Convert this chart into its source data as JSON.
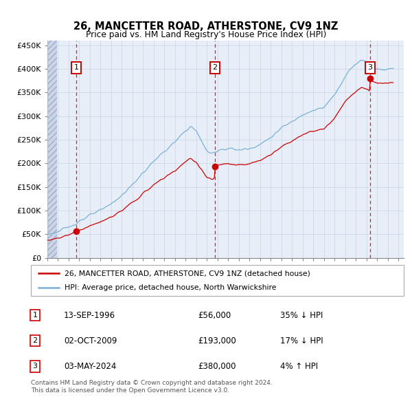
{
  "title": "26, MANCETTER ROAD, ATHERSTONE, CV9 1NZ",
  "subtitle": "Price paid vs. HM Land Registry's House Price Index (HPI)",
  "ylim": [
    0,
    460000
  ],
  "xlim_start": 1994.0,
  "xlim_end": 2027.5,
  "yticks": [
    0,
    50000,
    100000,
    150000,
    200000,
    250000,
    300000,
    350000,
    400000,
    450000
  ],
  "ytick_labels": [
    "£0",
    "£50K",
    "£100K",
    "£150K",
    "£200K",
    "£250K",
    "£300K",
    "£350K",
    "£400K",
    "£450K"
  ],
  "xticks": [
    1994,
    1995,
    1996,
    1997,
    1998,
    1999,
    2000,
    2001,
    2002,
    2003,
    2004,
    2005,
    2006,
    2007,
    2008,
    2009,
    2010,
    2011,
    2012,
    2013,
    2014,
    2015,
    2016,
    2017,
    2018,
    2019,
    2020,
    2021,
    2022,
    2023,
    2024,
    2025,
    2026,
    2027
  ],
  "hpi_color": "#7ab0d8",
  "price_color": "#cc0000",
  "marker_color": "#cc0000",
  "dashed_line_color": "#cc0000",
  "transaction_dates": [
    1996.71,
    2009.75,
    2024.34
  ],
  "transaction_prices": [
    56000,
    193000,
    380000
  ],
  "transaction_labels": [
    "1",
    "2",
    "3"
  ],
  "legend_entries": [
    "26, MANCETTER ROAD, ATHERSTONE, CV9 1NZ (detached house)",
    "HPI: Average price, detached house, North Warwickshire"
  ],
  "table_rows": [
    [
      "1",
      "13-SEP-1996",
      "£56,000",
      "35% ↓ HPI"
    ],
    [
      "2",
      "02-OCT-2009",
      "£193,000",
      "17% ↓ HPI"
    ],
    [
      "3",
      "03-MAY-2024",
      "£380,000",
      "4% ↑ HPI"
    ]
  ],
  "footer": "Contains HM Land Registry data © Crown copyright and database right 2024.\nThis data is licensed under the Open Government Licence v3.0.",
  "grid_color": "#c8d4e4",
  "bg_color": "#e8eef8",
  "hatch_region_end": 1994.9
}
